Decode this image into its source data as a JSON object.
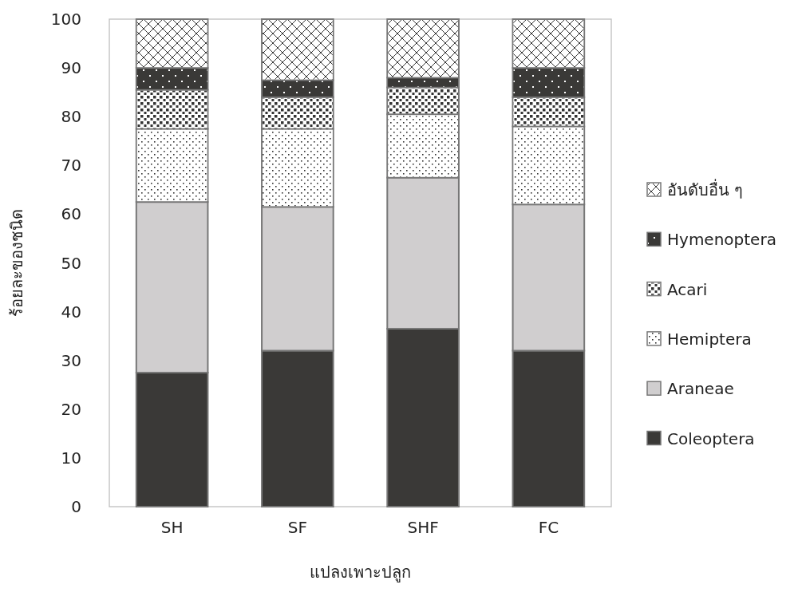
{
  "chart_data": {
    "type": "bar",
    "stacked": true,
    "xlabel": "แปลงเพาะปลูก",
    "ylabel": "ร้อยละของชนิด",
    "categories": [
      "SH",
      "SF",
      "SHF",
      "FC"
    ],
    "series": [
      {
        "name": "Coleoptera",
        "color": "#3a3937",
        "values": [
          27.5,
          32,
          36.5,
          32
        ]
      },
      {
        "name": "Araneae",
        "color": "#d0cecf",
        "values": [
          35,
          29.5,
          31,
          30
        ]
      },
      {
        "name": "Hemiptera",
        "color": "#ffffff",
        "values": [
          15,
          16,
          13,
          16
        ]
      },
      {
        "name": "Acari",
        "color": "#ffffff",
        "values": [
          8,
          6.5,
          5.5,
          6
        ]
      },
      {
        "name": "Hymenoptera",
        "color": "#3a3937",
        "values": [
          4.5,
          3.5,
          2,
          6
        ]
      },
      {
        "name": "อันดับอื่น ๆ",
        "color": "#ffffff",
        "values": [
          10,
          12.5,
          12,
          10
        ]
      }
    ],
    "ylim": [
      0,
      100
    ],
    "yticks": [
      0,
      10,
      20,
      30,
      40,
      50,
      60,
      70,
      80,
      90,
      100
    ],
    "grid": false,
    "legend": "right"
  }
}
